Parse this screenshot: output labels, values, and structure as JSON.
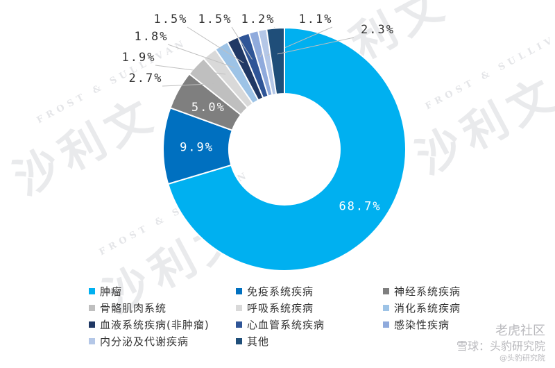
{
  "chart_data": {
    "type": "pie",
    "style": "donut",
    "title": "",
    "unit": "%",
    "categories": [
      "肿瘤",
      "免疫系统疾病",
      "神经系统疾病",
      "骨骼肌肉系统",
      "呼吸系统疾病",
      "消化系统疾病",
      "血液系统疾病(非肿瘤)",
      "心血管系统疾病",
      "感染性疾病",
      "内分泌及代谢疾病",
      "其他"
    ],
    "values": [
      68.7,
      9.9,
      5.0,
      2.7,
      1.9,
      1.8,
      1.5,
      1.5,
      1.2,
      1.1,
      2.3
    ],
    "labels": [
      "68.7%",
      "9.9%",
      "5.0%",
      "2.7%",
      "1.9%",
      "1.8%",
      "1.5%",
      "1.5%",
      "1.2%",
      "1.1%",
      "2.3%"
    ],
    "colors": [
      "#00b0f0",
      "#0070c0",
      "#7f7f7f",
      "#bfbfbf",
      "#d9d9d9",
      "#9dc3e6",
      "#203864",
      "#2f5597",
      "#8faadc",
      "#b4c7e7",
      "#1f4e79"
    ],
    "legend_position": "bottom"
  },
  "watermark": {
    "main": "沙利文",
    "sub": "FROST & SULLIVAN"
  },
  "badge": {
    "line1": "老虎社区",
    "line2": "雪球：头豹研究院",
    "line3": "@头豹研究院"
  }
}
